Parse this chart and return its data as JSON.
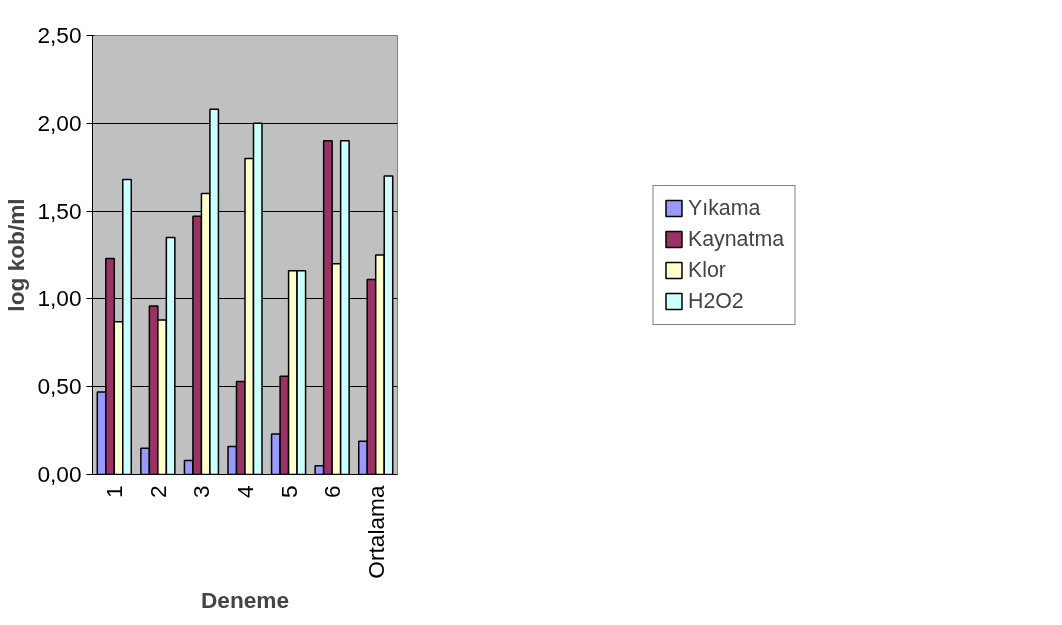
{
  "chart_data": {
    "type": "bar",
    "xlabel": "Deneme",
    "ylabel": "log kob/ml",
    "categories": [
      "1",
      "2",
      "3",
      "4",
      "5",
      "6",
      "Ortalama"
    ],
    "series": [
      {
        "name": "Yıkama",
        "color": "#9999ff",
        "values": [
          0.47,
          0.15,
          0.08,
          0.16,
          0.23,
          0.05,
          0.19
        ]
      },
      {
        "name": "Kaynatma",
        "color": "#993366",
        "values": [
          1.23,
          0.96,
          1.47,
          0.53,
          0.56,
          1.9,
          1.11
        ]
      },
      {
        "name": "Klor",
        "color": "#ffffcc",
        "values": [
          0.87,
          0.88,
          1.6,
          1.8,
          1.16,
          1.2,
          1.25
        ]
      },
      {
        "name": "H2O2",
        "color": "#ccffff",
        "values": [
          1.68,
          1.35,
          2.08,
          2.0,
          1.16,
          1.9,
          1.7
        ]
      }
    ],
    "ylim": [
      0,
      2.5
    ],
    "yticks": [
      {
        "value": 0,
        "label": "0,00"
      },
      {
        "value": 0.5,
        "label": "0,50"
      },
      {
        "value": 1,
        "label": "1,00"
      },
      {
        "value": 1.5,
        "label": "1,50"
      },
      {
        "value": 2,
        "label": "2,00"
      },
      {
        "value": 2.5,
        "label": "2,50"
      }
    ],
    "grid": "y",
    "legend": "right"
  }
}
